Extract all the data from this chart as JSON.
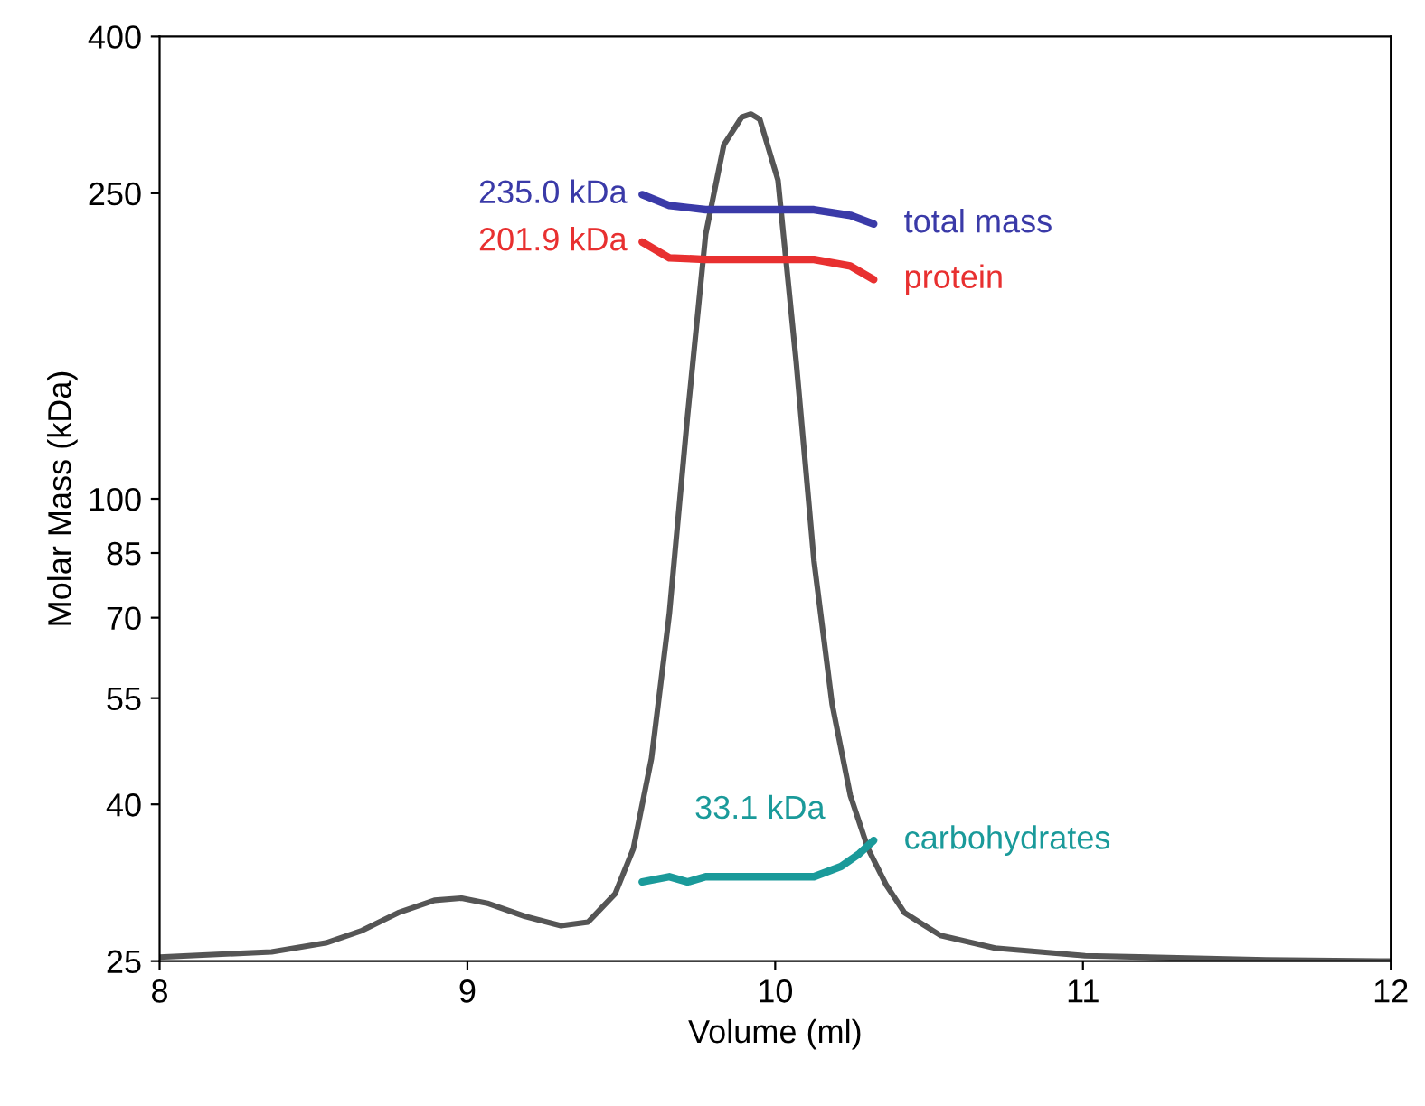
{
  "chart_data": {
    "type": "line",
    "xlabel": "Volume (ml)",
    "ylabel": "Molar Mass (kDa)",
    "log": "y",
    "xlim": [
      8,
      12
    ],
    "xticks": [
      8,
      9,
      10,
      11,
      12
    ],
    "ylim": [
      25,
      400
    ],
    "yticks": [
      25,
      40,
      55,
      70,
      85,
      100,
      250,
      400
    ],
    "grid": false,
    "legend": false,
    "marker": "none",
    "line_style": "solid",
    "series": [
      {
        "color": "#555555",
        "x": [
          8,
          8.364,
          8.54,
          8.658,
          8.775,
          8.893,
          8.981,
          9.069,
          9.186,
          9.304,
          9.392,
          9.48,
          9.539,
          9.598,
          9.656,
          9.715,
          9.774,
          9.833,
          9.891,
          9.921,
          9.95,
          10.009,
          10.068,
          10.126,
          10.185,
          10.244,
          10.302,
          10.361,
          10.42,
          10.537,
          10.714,
          11.007,
          11.595,
          12
        ],
        "values": [
          25.3,
          25.7,
          26.4,
          27.4,
          28.9,
          30.0,
          30.2,
          29.7,
          28.6,
          27.8,
          28.1,
          30.6,
          35.0,
          45.9,
          70.8,
          128,
          221,
          289,
          314,
          317,
          312,
          260,
          151,
          83,
          54,
          41.1,
          35.0,
          31.4,
          28.9,
          27.0,
          26.0,
          25.4,
          25.1,
          25
        ]
      },
      {
        "name": "total mass",
        "color": "#3a3aa8",
        "x": [
          9.568,
          9.656,
          9.774,
          9.95,
          10.126,
          10.244,
          10.32
        ],
        "values": [
          249,
          241,
          238,
          238,
          238,
          234,
          228
        ]
      },
      {
        "name": "protein",
        "color": "#e83030",
        "x": [
          9.568,
          9.656,
          9.774,
          9.95,
          10.126,
          10.244,
          10.32
        ],
        "values": [
          216,
          206,
          205,
          205,
          205,
          201,
          193
        ]
      },
      {
        "name": "carbohydrates",
        "color": "#1a9a9a",
        "x": [
          9.568,
          9.656,
          9.715,
          9.774,
          9.95,
          10.126,
          10.214,
          10.273,
          10.32
        ],
        "values": [
          31.7,
          32.2,
          31.7,
          32.2,
          32.2,
          32.2,
          33.2,
          34.5,
          35.9
        ]
      }
    ],
    "annotations": [
      "235.0 kDa",
      "201.9 kDa",
      "33.1 kDa"
    ]
  }
}
